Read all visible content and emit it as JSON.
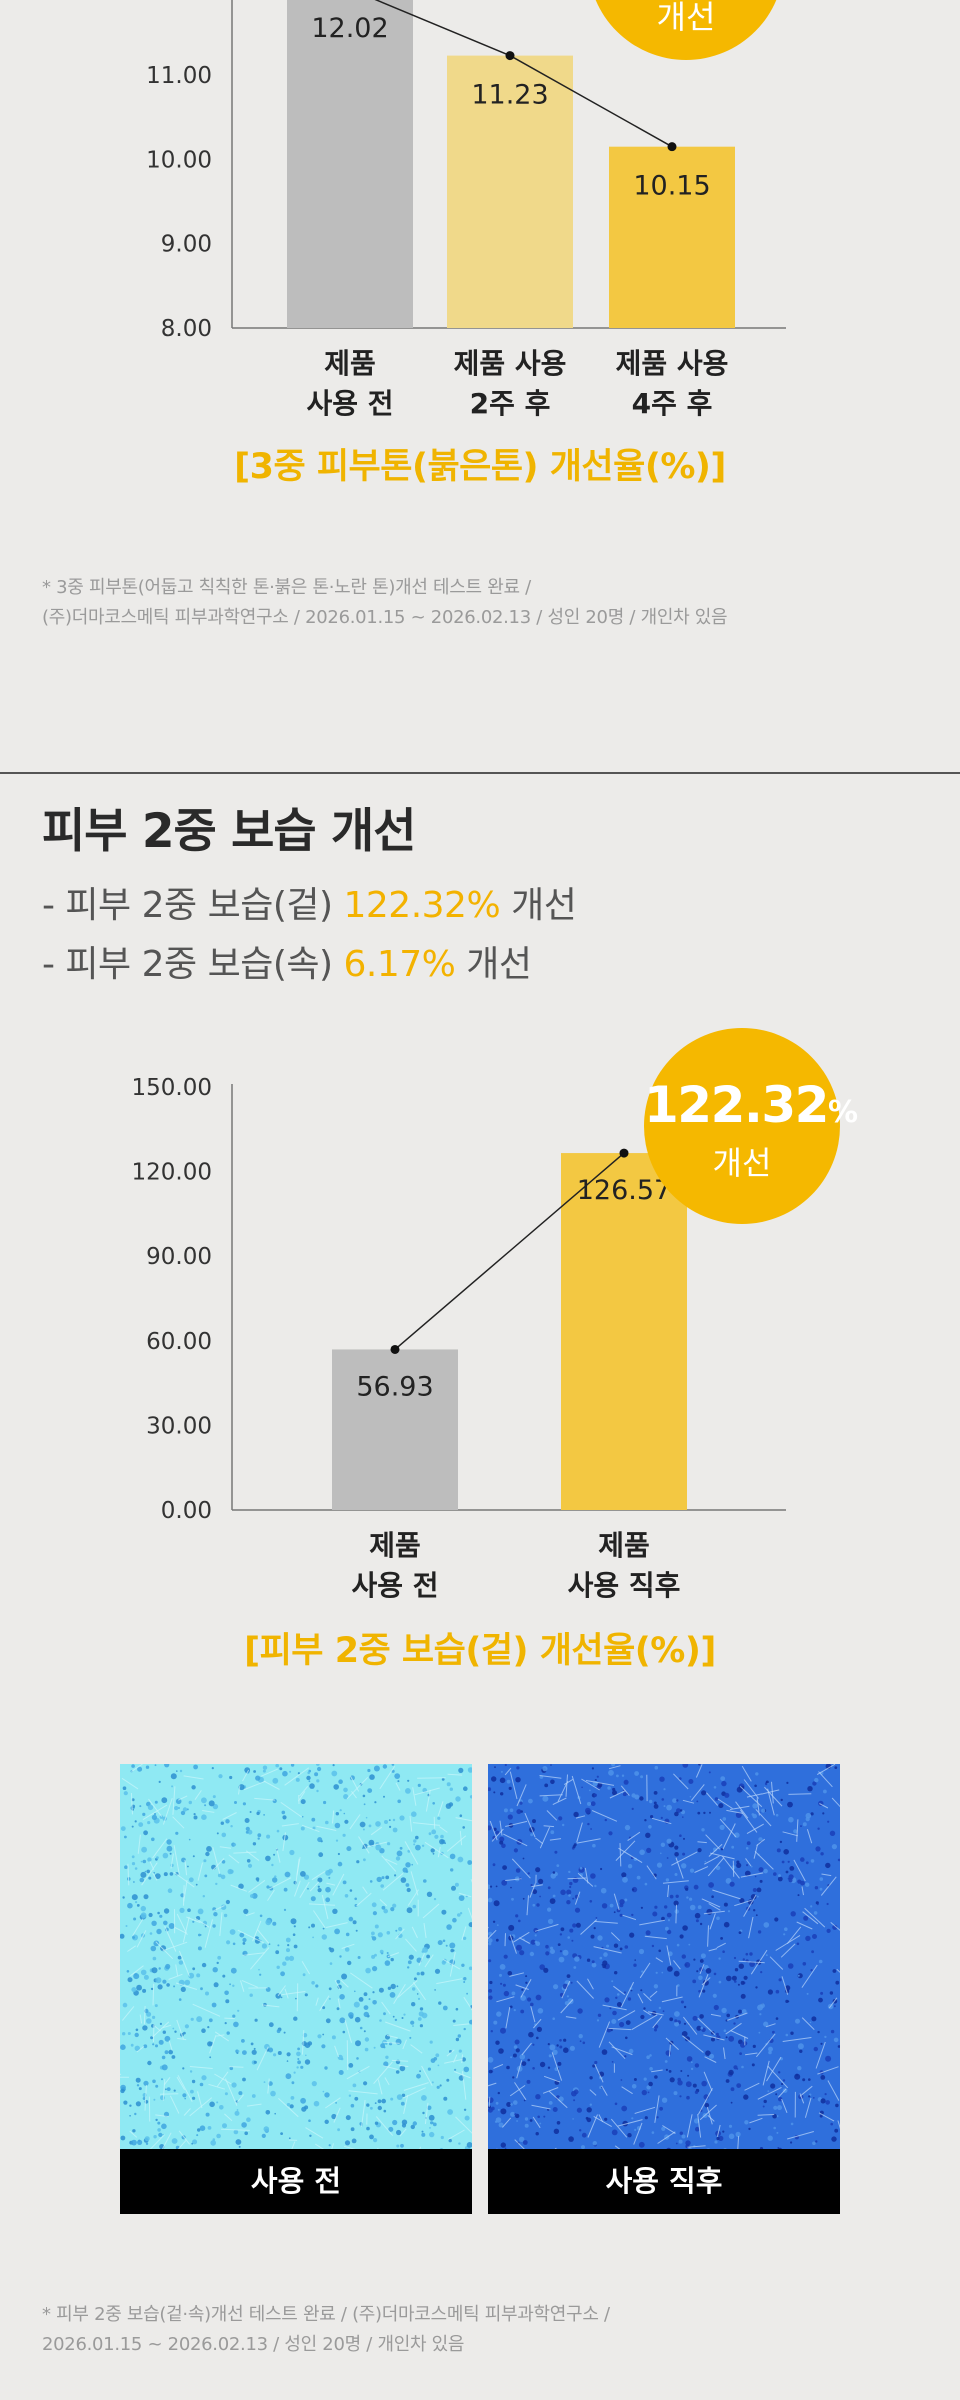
{
  "chart_data": [
    {
      "type": "bar",
      "categories": [
        "제품\n사용 전",
        "제품 사용\n2주 후",
        "제품 사용\n4주 후"
      ],
      "values": [
        12.02,
        11.23,
        10.15
      ],
      "value_labels": [
        "12.02",
        "11.23",
        "10.15"
      ],
      "y_ticks": [
        "8.00",
        "9.00",
        "10.00",
        "11.00"
      ],
      "ylim": [
        8,
        13
      ],
      "colors": [
        "#bdbdbd",
        "#f0d98a",
        "#f3c842"
      ],
      "title": "[3중 피부톤(붉은톤) 개선율(%)]",
      "badge": {
        "text": "개선"
      }
    },
    {
      "type": "bar",
      "categories": [
        "제품\n사용 전",
        "제품\n사용 직후"
      ],
      "values": [
        56.93,
        126.57
      ],
      "value_labels": [
        "56.93",
        "126.57"
      ],
      "y_ticks": [
        "0.00",
        "30.00",
        "60.00",
        "90.00",
        "120.00",
        "150.00"
      ],
      "ylim": [
        0,
        150
      ],
      "colors": [
        "#bdbdbd",
        "#f3c842"
      ],
      "title": "[피부 2중 보습(겉) 개선율(%)]",
      "badge": {
        "value": "122.32",
        "unit": "%",
        "text": "개선"
      }
    }
  ],
  "notes": {
    "tone": [
      "* 3중 피부톤(어둡고 칙칙한 톤·붉은 톤·노란 톤)개선 테스트 완료 /",
      "(주)더마코스메틱 피부과학연구소 / 2026.01.15 ~ 2026.02.13 / 성인 20명 / 개인차 있음"
    ],
    "moist": [
      "* 피부 2중 보습(겉·속)개선 테스트 완료 / (주)더마코스메틱 피부과학연구소 /",
      "2026.01.15 ~ 2026.02.13 / 성인 20명 / 개인차 있음"
    ]
  },
  "section": {
    "title": "피부 2중 보습 개선",
    "bullets": [
      {
        "prefix": "- 피부 2중 보습(겉) ",
        "highlight": "122.32%",
        "suffix": " 개선"
      },
      {
        "prefix": "- 피부 2중 보습(속) ",
        "highlight": "6.17%",
        "suffix": " 개선"
      }
    ]
  },
  "photos": {
    "before_label": "사용 전",
    "after_label": "사용 직후",
    "before_color": "#8fe9f3",
    "after_color": "#2f6fdc"
  }
}
